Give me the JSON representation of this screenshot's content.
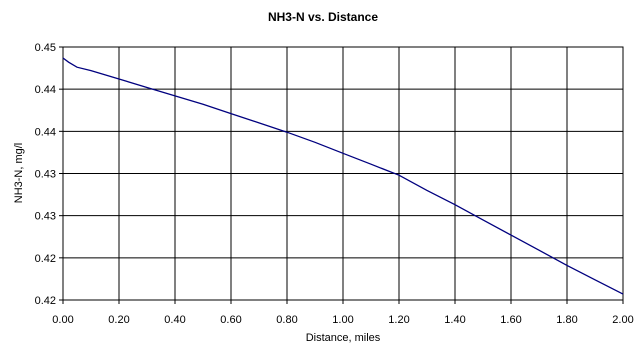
{
  "chart_data": {
    "type": "line",
    "title": "NH3-N vs. Distance",
    "xlabel": "Distance, miles",
    "ylabel": "NH3-N, mg/l",
    "xlim": [
      0,
      2
    ],
    "ylim": [
      0.42,
      0.45
    ],
    "x_ticks": [
      0.0,
      0.2,
      0.4,
      0.6,
      0.8,
      1.0,
      1.2,
      1.4,
      1.6,
      1.8,
      2.0
    ],
    "x_tick_labels": [
      "0.00",
      "0.20",
      "0.40",
      "0.60",
      "0.80",
      "1.00",
      "1.20",
      "1.40",
      "1.60",
      "1.80",
      "2.00"
    ],
    "y_ticks": [
      0.42,
      0.425,
      0.43,
      0.435,
      0.44,
      0.445,
      0.45
    ],
    "y_tick_labels": [
      "0.42",
      "0.42",
      "0.43",
      "0.43",
      "0.44",
      "0.44",
      "0.45"
    ],
    "grid": true,
    "legend": "none",
    "line_color": "#00007f",
    "series": [
      {
        "x": [
          0.0,
          0.02,
          0.05,
          0.1,
          0.2,
          0.3,
          0.4,
          0.5,
          0.6,
          0.7,
          0.8,
          0.9,
          1.0,
          1.1,
          1.2,
          1.3,
          1.4,
          1.5,
          1.6,
          1.7,
          1.8,
          1.9,
          2.0
        ],
        "values": [
          0.4487,
          0.4482,
          0.4476,
          0.4472,
          0.4462,
          0.4452,
          0.4442,
          0.4432,
          0.4421,
          0.441,
          0.4399,
          0.4387,
          0.4374,
          0.4361,
          0.4348,
          0.433,
          0.4313,
          0.4295,
          0.4277,
          0.4259,
          0.4241,
          0.4224,
          0.4207
        ]
      }
    ]
  }
}
